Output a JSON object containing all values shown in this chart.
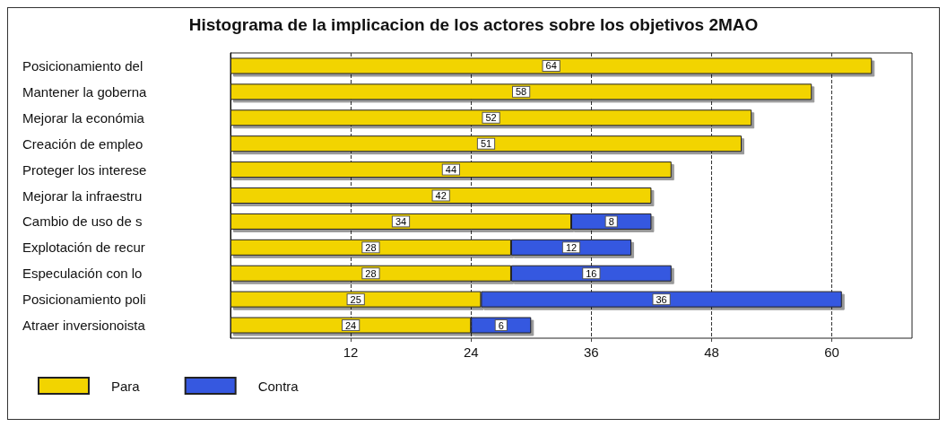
{
  "chart_data": {
    "type": "bar",
    "title": "Histograma de la implicacion de los actores sobre los objetivos 2MAO",
    "orientation": "horizontal",
    "stacked": true,
    "categories": [
      "Posicionamiento del",
      "Mantener la goberna",
      "Mejorar la económia",
      "Creación de empleo",
      "Proteger los interese",
      "Mejorar la infraestru",
      "Cambio de uso de s",
      "Explotación de recur",
      "Especulación con lo",
      "Posicionamiento poli",
      "Atraer inversionoista"
    ],
    "series": [
      {
        "name": "Para",
        "color": "#f2d400",
        "values": [
          64,
          58,
          52,
          51,
          44,
          42,
          34,
          28,
          28,
          25,
          24
        ]
      },
      {
        "name": "Contra",
        "color": "#3658e0",
        "values": [
          null,
          null,
          null,
          null,
          null,
          null,
          8,
          12,
          16,
          36,
          6
        ]
      }
    ],
    "xlim": [
      0,
      68
    ],
    "xticks": [
      12,
      24,
      36,
      48,
      60
    ],
    "grid": "x",
    "legend": "bottom left",
    "data_labels": true
  }
}
